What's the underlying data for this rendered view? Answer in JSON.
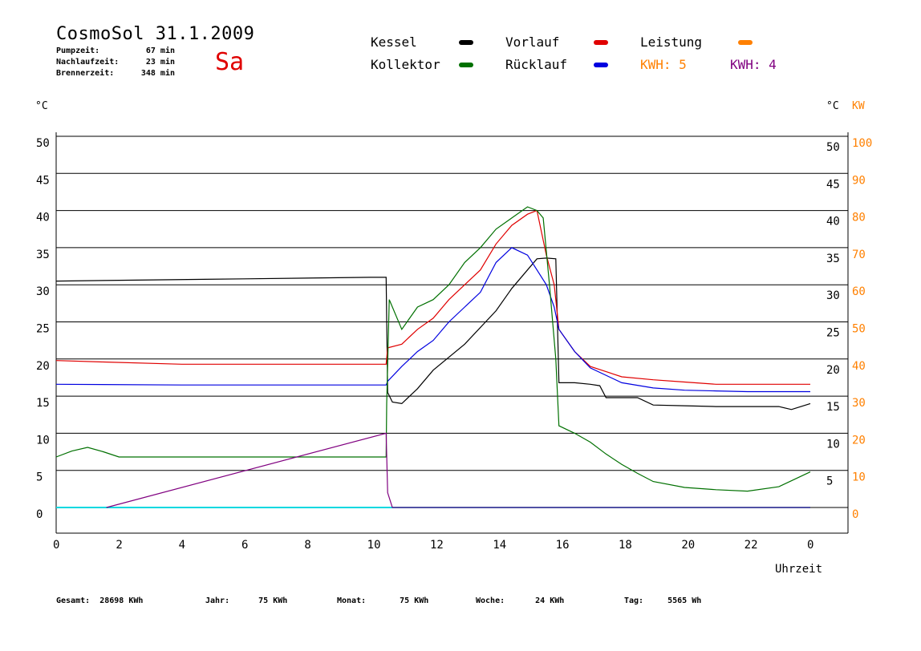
{
  "header": {
    "title": "CosmoSol 31.1.2009",
    "day": "Sa",
    "info": [
      {
        "label": "Pumpzeit:",
        "value": "67 min"
      },
      {
        "label": "Nachlaufzeit:",
        "value": "23 min"
      },
      {
        "label": "Brennerzeit:",
        "value": "348 min"
      }
    ]
  },
  "legend": {
    "kessel": "Kessel",
    "kollektor": "Kollektor",
    "vorlauf": "Vorlauf",
    "ruecklauf": "Rücklauf",
    "leistung": "Leistung",
    "kwh1": "KWH: 5",
    "kwh2": "KWH: 4"
  },
  "colors": {
    "kessel": "#000000",
    "vorlauf": "#e00000",
    "kollektor": "#007000",
    "ruecklauf": "#0000e0",
    "leistung": "#ff8000",
    "kwh": "#800080",
    "pump": "#00d8e0"
  },
  "footer": [
    {
      "label": "Gesamt:",
      "value": "28698 KWh"
    },
    {
      "label": "Jahr:",
      "value": "75 KWh"
    },
    {
      "label": "Monat:",
      "value": "75 KWh"
    },
    {
      "label": "Woche:",
      "value": "24 KWh"
    },
    {
      "label": "Tag:",
      "value": "5565 Wh"
    }
  ],
  "chart_data": {
    "type": "line",
    "xlabel": "Uhrzeit",
    "ylabel_left": "°C",
    "ylabel_right": "°C",
    "ylabel_right2": "KW",
    "xlim": [
      0,
      24
    ],
    "ylim": [
      0,
      50
    ],
    "y2lim": [
      0,
      100
    ],
    "x_ticks": [
      "0",
      "2",
      "4",
      "6",
      "8",
      "10",
      "12",
      "14",
      "16",
      "18",
      "20",
      "22",
      "0"
    ],
    "y_ticks": [
      0,
      5,
      10,
      15,
      20,
      25,
      30,
      35,
      40,
      45,
      50
    ],
    "y2_ticks": [
      0,
      10,
      20,
      30,
      40,
      50,
      60,
      70,
      80,
      90,
      100
    ],
    "grid": true,
    "series": [
      {
        "name": "Kessel",
        "x": [
          0,
          2,
          6,
          10,
          10.5,
          10.55,
          10.7,
          11,
          11.5,
          12,
          13,
          14,
          14.5,
          15,
          15.3,
          15.6,
          15.9,
          16.0,
          16.5,
          17,
          17.3,
          17.5,
          18,
          18.5,
          19,
          20,
          21,
          22,
          23,
          23.4,
          24
        ],
        "y": [
          30.5,
          30.6,
          30.8,
          31.0,
          31.0,
          15.5,
          14.2,
          14.0,
          16,
          18.5,
          22,
          26.5,
          29.5,
          32,
          33.5,
          33.6,
          33.5,
          16.8,
          16.8,
          16.6,
          16.4,
          14.8,
          14.8,
          14.8,
          13.8,
          13.7,
          13.6,
          13.6,
          13.6,
          13.2,
          14.0
        ]
      },
      {
        "name": "Vorlauf",
        "x": [
          0,
          1.5,
          4,
          10.5,
          10.55,
          11,
          11.5,
          12,
          12.5,
          13,
          13.5,
          14,
          14.5,
          15,
          15.3,
          15.6,
          15.85,
          16,
          16.5,
          17,
          18,
          19,
          20,
          21,
          22,
          23,
          24
        ],
        "y": [
          19.8,
          19.6,
          19.3,
          19.3,
          21.5,
          22,
          24,
          25.5,
          28,
          30,
          32,
          35.5,
          38,
          39.5,
          40,
          34,
          30,
          24,
          21,
          19,
          17.6,
          17.2,
          16.9,
          16.6,
          16.6,
          16.6,
          16.6
        ]
      },
      {
        "name": "Rücklauf",
        "x": [
          0,
          4,
          10.5,
          10.55,
          11,
          11.5,
          12,
          12.5,
          13,
          13.5,
          14,
          14.5,
          15,
          15.3,
          15.6,
          15.85,
          16,
          16.5,
          17,
          18,
          19,
          20,
          21,
          22,
          23,
          24
        ],
        "y": [
          16.6,
          16.5,
          16.5,
          17,
          19,
          21,
          22.5,
          25,
          27,
          29,
          33,
          35,
          34,
          32,
          30,
          27,
          24,
          21,
          18.8,
          16.8,
          16.1,
          15.8,
          15.7,
          15.6,
          15.6,
          15.6
        ]
      },
      {
        "name": "Kollektor",
        "x": [
          0,
          0.5,
          1,
          1.5,
          2,
          6,
          10.5,
          10.52,
          10.6,
          11,
          11.5,
          12,
          12.5,
          13,
          13.5,
          14,
          14.5,
          15,
          15.3,
          15.5,
          15.7,
          15.9,
          16.0,
          16.5,
          17,
          17.5,
          18,
          18.5,
          19,
          20,
          21,
          22,
          23,
          23.5,
          24
        ],
        "y": [
          6.8,
          7.6,
          8.1,
          7.5,
          6.8,
          6.8,
          6.8,
          14,
          28,
          24,
          27,
          28,
          30,
          33,
          35,
          37.5,
          39,
          40.5,
          40,
          39,
          30,
          20,
          11,
          10,
          8.8,
          7.2,
          5.8,
          4.6,
          3.5,
          2.7,
          2.4,
          2.2,
          2.8,
          3.8,
          4.8
        ]
      },
      {
        "name": "KWH: 5",
        "x": [
          1.6,
          10.5,
          10.55,
          10.7,
          24
        ],
        "y": [
          0,
          10,
          2,
          0,
          0
        ]
      }
    ]
  }
}
